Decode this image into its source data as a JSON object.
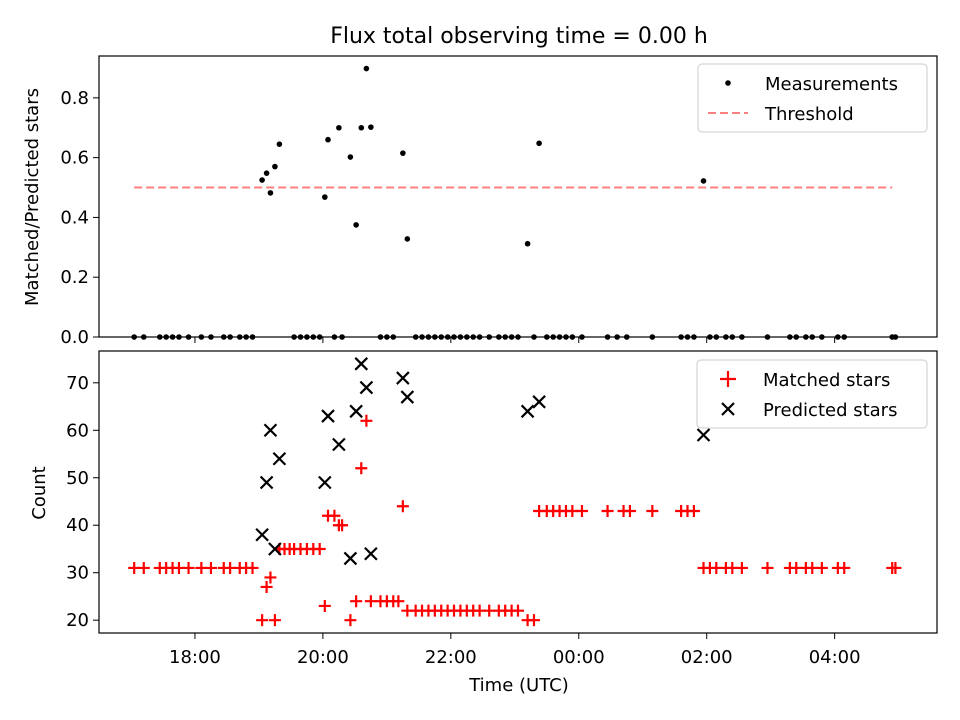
{
  "chart_data": {
    "title": "Flux total observing time = 0.00 h",
    "x_ticks": [
      "18:00",
      "20:00",
      "22:00",
      "00:00",
      "02:00",
      "04:00"
    ],
    "x_tick_hours": [
      18,
      20,
      22,
      24,
      26,
      28
    ],
    "xlim_hours": [
      16.5,
      29.6
    ],
    "xlabel": "Time (UTC)",
    "panels": [
      {
        "type": "scatter",
        "ylabel": "Matched/Predicted stars",
        "ylim": [
          0,
          0.94
        ],
        "y_ticks": [
          0.0,
          0.2,
          0.4,
          0.6,
          0.8
        ],
        "y_tick_labels": [
          "0.0",
          "0.2",
          "0.4",
          "0.6",
          "0.8"
        ],
        "legend": {
          "position": "top-right",
          "measurements_label": "Measurements",
          "threshold_label": "Threshold"
        },
        "threshold": {
          "value": 0.5,
          "x_range_hours": [
            17.05,
            28.9
          ],
          "color": "#ff7f7f"
        },
        "measurements_color": "#000000",
        "measurements": [
          [
            17.05,
            0
          ],
          [
            17.2,
            0
          ],
          [
            17.45,
            0
          ],
          [
            17.55,
            0
          ],
          [
            17.65,
            0
          ],
          [
            17.75,
            0
          ],
          [
            17.9,
            0
          ],
          [
            18.1,
            0
          ],
          [
            18.25,
            0
          ],
          [
            18.45,
            0
          ],
          [
            18.55,
            0
          ],
          [
            18.7,
            0
          ],
          [
            18.8,
            0
          ],
          [
            18.9,
            0
          ],
          [
            19.05,
            0.525
          ],
          [
            19.12,
            0.548
          ],
          [
            19.18,
            0.482
          ],
          [
            19.25,
            0.57
          ],
          [
            19.32,
            0.645
          ],
          [
            19.55,
            0
          ],
          [
            19.65,
            0
          ],
          [
            19.75,
            0
          ],
          [
            19.85,
            0
          ],
          [
            19.95,
            0
          ],
          [
            20.03,
            0.468
          ],
          [
            20.08,
            0.66
          ],
          [
            20.18,
            0
          ],
          [
            20.25,
            0.7
          ],
          [
            20.3,
            0
          ],
          [
            20.43,
            0.602
          ],
          [
            20.52,
            0.375
          ],
          [
            20.6,
            0.7
          ],
          [
            20.68,
            0.898
          ],
          [
            20.75,
            0.702
          ],
          [
            20.9,
            0
          ],
          [
            21.0,
            0
          ],
          [
            21.1,
            0
          ],
          [
            21.25,
            0.615
          ],
          [
            21.32,
            0.328
          ],
          [
            21.45,
            0
          ],
          [
            21.55,
            0
          ],
          [
            21.65,
            0
          ],
          [
            21.75,
            0
          ],
          [
            21.85,
            0
          ],
          [
            21.95,
            0
          ],
          [
            22.05,
            0
          ],
          [
            22.15,
            0
          ],
          [
            22.25,
            0
          ],
          [
            22.35,
            0
          ],
          [
            22.45,
            0
          ],
          [
            22.6,
            0
          ],
          [
            22.75,
            0
          ],
          [
            22.85,
            0
          ],
          [
            22.95,
            0
          ],
          [
            23.05,
            0
          ],
          [
            23.2,
            0.312
          ],
          [
            23.3,
            0
          ],
          [
            23.38,
            0.648
          ],
          [
            23.5,
            0
          ],
          [
            23.6,
            0
          ],
          [
            23.7,
            0
          ],
          [
            23.8,
            0
          ],
          [
            23.9,
            0
          ],
          [
            24.05,
            0
          ],
          [
            24.45,
            0
          ],
          [
            24.6,
            0
          ],
          [
            24.75,
            0
          ],
          [
            25.15,
            0
          ],
          [
            25.6,
            0
          ],
          [
            25.7,
            0
          ],
          [
            25.8,
            0
          ],
          [
            25.95,
            0.522
          ],
          [
            26.05,
            0
          ],
          [
            26.15,
            0
          ],
          [
            26.3,
            0
          ],
          [
            26.4,
            0
          ],
          [
            26.55,
            0
          ],
          [
            26.95,
            0
          ],
          [
            27.3,
            0
          ],
          [
            27.4,
            0
          ],
          [
            27.55,
            0
          ],
          [
            27.65,
            0
          ],
          [
            27.8,
            0
          ],
          [
            28.05,
            0
          ],
          [
            28.15,
            0
          ],
          [
            28.9,
            0
          ],
          [
            28.95,
            0
          ]
        ]
      },
      {
        "type": "scatter",
        "ylabel": "Count",
        "ylim": [
          17.3,
          76.7
        ],
        "y_ticks": [
          20,
          30,
          40,
          50,
          60,
          70
        ],
        "y_tick_labels": [
          "20",
          "30",
          "40",
          "50",
          "60",
          "70"
        ],
        "legend": {
          "position": "top-right",
          "matched_label": "Matched stars",
          "predicted_label": "Predicted stars"
        },
        "matched_color": "#ff0000",
        "predicted_color": "#000000",
        "matched": [
          [
            17.05,
            31
          ],
          [
            17.2,
            31
          ],
          [
            17.45,
            31
          ],
          [
            17.55,
            31
          ],
          [
            17.65,
            31
          ],
          [
            17.75,
            31
          ],
          [
            17.9,
            31
          ],
          [
            18.1,
            31
          ],
          [
            18.25,
            31
          ],
          [
            18.45,
            31
          ],
          [
            18.55,
            31
          ],
          [
            18.7,
            31
          ],
          [
            18.8,
            31
          ],
          [
            18.9,
            31
          ],
          [
            19.05,
            20
          ],
          [
            19.12,
            27
          ],
          [
            19.18,
            29
          ],
          [
            19.25,
            20
          ],
          [
            19.32,
            35
          ],
          [
            19.4,
            35
          ],
          [
            19.48,
            35
          ],
          [
            19.55,
            35
          ],
          [
            19.65,
            35
          ],
          [
            19.75,
            35
          ],
          [
            19.85,
            35
          ],
          [
            19.95,
            35
          ],
          [
            20.03,
            23
          ],
          [
            20.08,
            42
          ],
          [
            20.18,
            42
          ],
          [
            20.25,
            40
          ],
          [
            20.3,
            40
          ],
          [
            20.43,
            20
          ],
          [
            20.52,
            24
          ],
          [
            20.6,
            52
          ],
          [
            20.68,
            62
          ],
          [
            20.75,
            24
          ],
          [
            20.9,
            24
          ],
          [
            21.0,
            24
          ],
          [
            21.1,
            24
          ],
          [
            21.18,
            24
          ],
          [
            21.25,
            44
          ],
          [
            21.32,
            22
          ],
          [
            21.45,
            22
          ],
          [
            21.55,
            22
          ],
          [
            21.65,
            22
          ],
          [
            21.75,
            22
          ],
          [
            21.85,
            22
          ],
          [
            21.95,
            22
          ],
          [
            22.05,
            22
          ],
          [
            22.15,
            22
          ],
          [
            22.25,
            22
          ],
          [
            22.35,
            22
          ],
          [
            22.45,
            22
          ],
          [
            22.6,
            22
          ],
          [
            22.75,
            22
          ],
          [
            22.85,
            22
          ],
          [
            22.95,
            22
          ],
          [
            23.05,
            22
          ],
          [
            23.2,
            20
          ],
          [
            23.3,
            20
          ],
          [
            23.38,
            43
          ],
          [
            23.5,
            43
          ],
          [
            23.6,
            43
          ],
          [
            23.7,
            43
          ],
          [
            23.8,
            43
          ],
          [
            23.9,
            43
          ],
          [
            24.05,
            43
          ],
          [
            24.45,
            43
          ],
          [
            24.7,
            43
          ],
          [
            24.8,
            43
          ],
          [
            25.15,
            43
          ],
          [
            25.6,
            43
          ],
          [
            25.7,
            43
          ],
          [
            25.8,
            43
          ],
          [
            25.95,
            31
          ],
          [
            26.05,
            31
          ],
          [
            26.15,
            31
          ],
          [
            26.3,
            31
          ],
          [
            26.4,
            31
          ],
          [
            26.55,
            31
          ],
          [
            26.95,
            31
          ],
          [
            27.3,
            31
          ],
          [
            27.4,
            31
          ],
          [
            27.55,
            31
          ],
          [
            27.65,
            31
          ],
          [
            27.8,
            31
          ],
          [
            28.05,
            31
          ],
          [
            28.15,
            31
          ],
          [
            28.9,
            31
          ],
          [
            28.95,
            31
          ]
        ],
        "predicted": [
          [
            19.05,
            38
          ],
          [
            19.12,
            49
          ],
          [
            19.18,
            60
          ],
          [
            19.25,
            35
          ],
          [
            19.32,
            54
          ],
          [
            20.03,
            49
          ],
          [
            20.08,
            63
          ],
          [
            20.25,
            57
          ],
          [
            20.43,
            33
          ],
          [
            20.52,
            64
          ],
          [
            20.6,
            74
          ],
          [
            20.68,
            69
          ],
          [
            20.75,
            34
          ],
          [
            21.25,
            71
          ],
          [
            21.32,
            67
          ],
          [
            23.2,
            64
          ],
          [
            23.38,
            66
          ],
          [
            25.95,
            59
          ]
        ]
      }
    ]
  }
}
